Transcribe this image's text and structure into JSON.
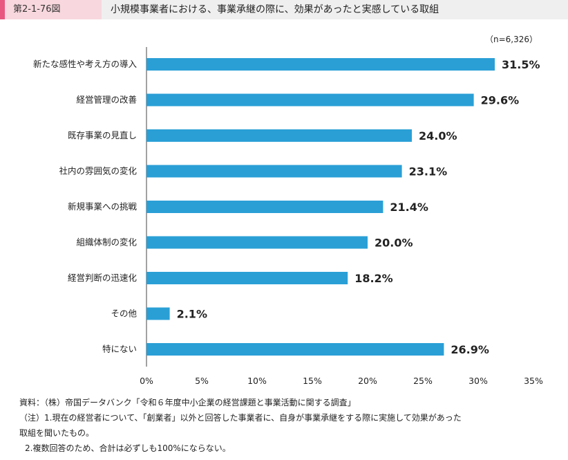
{
  "header": {
    "figure_no": "第2-1-76図",
    "title": "小規模事業者における、事業承継の際に、効果があったと実感している取組"
  },
  "chart_data": {
    "type": "bar",
    "orientation": "horizontal",
    "sample_note": "（n=6,326）",
    "categories": [
      "新たな感性や考え方の導入",
      "経営管理の改善",
      "既存事業の見直し",
      "社内の雰囲気の変化",
      "新規事業への挑戦",
      "組織体制の変化",
      "経営判断の迅速化",
      "その他",
      "特にない"
    ],
    "values": [
      31.5,
      29.6,
      24.0,
      23.1,
      21.4,
      20.0,
      18.2,
      2.1,
      26.9
    ],
    "value_labels": [
      "31.5%",
      "29.6%",
      "24.0%",
      "23.1%",
      "21.4%",
      "20.0%",
      "18.2%",
      "2.1%",
      "26.9%"
    ],
    "xlim": [
      0,
      35
    ],
    "xticks": [
      "0%",
      "5%",
      "10%",
      "15%",
      "20%",
      "25%",
      "30%",
      "35%"
    ],
    "bar_color": "#2a9fd6",
    "grid": false
  },
  "footer": {
    "source": "資料：（株）帝国データバンク「令和６年度中小企業の経営課題と事業活動に関する調査」",
    "note1_line1": "（注）1.現在の経営者について、「創業者」以外と回答した事業者に、自身が事業承継をする際に実施して効果があった",
    "note1_line2": "取組を聞いたもの。",
    "note2": "2.複数回答のため、合計は必ずしも100%にならない。"
  }
}
